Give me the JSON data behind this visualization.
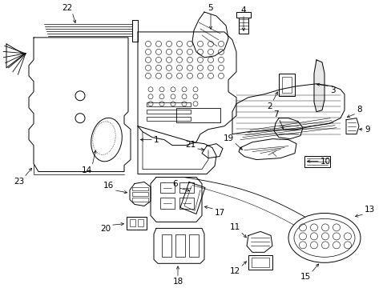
{
  "bg_color": "#ffffff",
  "line_color": "#000000",
  "figsize": [
    4.89,
    3.6
  ],
  "dpi": 100,
  "lw": 0.7
}
